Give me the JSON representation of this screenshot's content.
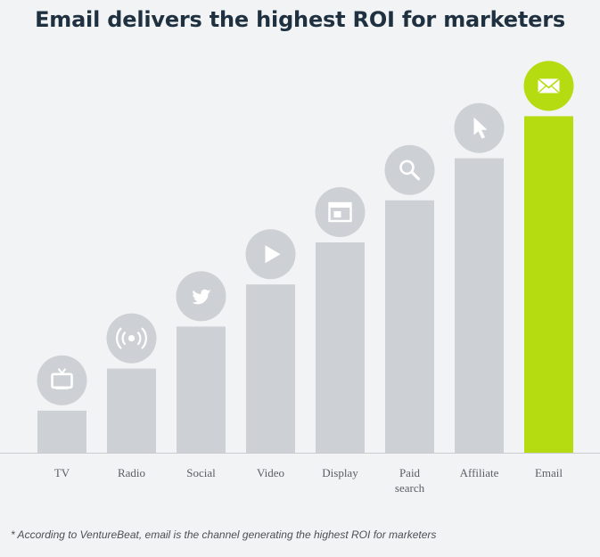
{
  "title": "Email delivers the highest ROI for marketers",
  "footnote": "* According to VentureBeat, email is the channel generating the highest ROI for marketers",
  "colors": {
    "bar_default": "#cdd0d4",
    "bar_highlight": "#b5dc10",
    "icon_circle_default": "#cdd0d4",
    "icon_circle_highlight": "#b5dc10",
    "icon_glyph": "#ffffff",
    "baseline": "#c8cbcf",
    "category_label": "#5a5f66"
  },
  "chart_data": {
    "type": "bar",
    "title": "Email delivers the highest ROI for marketers",
    "xlabel": "",
    "ylabel": "",
    "y_axis_shown": false,
    "grid": false,
    "categories": [
      "TV",
      "Radio",
      "Social",
      "Video",
      "Display",
      "Paid search",
      "Affiliate",
      "Email"
    ],
    "category_label_lines": [
      [
        "TV"
      ],
      [
        "Radio"
      ],
      [
        "Social"
      ],
      [
        "Video"
      ],
      [
        "Display"
      ],
      [
        "Paid",
        "search"
      ],
      [
        "Affiliate"
      ],
      [
        "Email"
      ]
    ],
    "values": [
      1,
      2,
      3,
      4,
      5,
      6,
      7,
      8
    ],
    "value_note": "relative rank (bars rise in equal steps; no scale printed)",
    "icons": [
      "tv-icon",
      "radio-icon",
      "twitter-icon",
      "play-icon",
      "display-icon",
      "search-icon",
      "cursor-icon",
      "envelope-icon"
    ],
    "highlight_index": 7
  }
}
